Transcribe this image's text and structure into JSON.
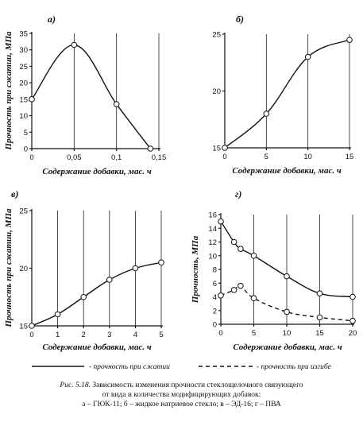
{
  "legend": {
    "compression": "- прочность при сжатии",
    "bending": "- прочность при изгибе"
  },
  "caption": {
    "prefix": "Рис. 5.18.",
    "line1": " Зависимость изменения прочности стеклощелочного связующего",
    "line2": "от вида и количества модифицирующих добавок:",
    "line3": "а – ГЮК-11; б – жидкое натриевое стекло; в – ЭД-16; г – ПВА"
  },
  "chart_data": [
    {
      "id": "a",
      "type": "line",
      "panel_letter": "а)",
      "xlabel": "Содержание добавки, мас. ч",
      "ylabel": "Прочность при сжатии, МПа",
      "x_ticks": [
        "0",
        "0,05",
        "0,1",
        "0,15"
      ],
      "x_tick_values": [
        0,
        0.05,
        0.1,
        0.15
      ],
      "y_ticks": [
        "0",
        "5",
        "10",
        "15",
        "20",
        "25",
        "30",
        "35"
      ],
      "y_tick_values": [
        0,
        5,
        10,
        15,
        20,
        25,
        30,
        35
      ],
      "xlim": [
        0,
        0.15
      ],
      "ylim": [
        0,
        35
      ],
      "grid": "vertical",
      "series": [
        {
          "style": "solid",
          "smooth": true,
          "x": [
            0,
            0.05,
            0.1,
            0.14
          ],
          "y": [
            15,
            31.5,
            13.5,
            0
          ]
        }
      ]
    },
    {
      "id": "b",
      "type": "line",
      "panel_letter": "б)",
      "xlabel": "Содержание добавки, мас. ч",
      "ylabel": "",
      "x_ticks": [
        "0",
        "5",
        "10",
        "15"
      ],
      "x_tick_values": [
        0,
        5,
        10,
        15
      ],
      "y_ticks": [
        "15",
        "20",
        "25"
      ],
      "y_tick_values": [
        15,
        20,
        25
      ],
      "xlim": [
        0,
        15
      ],
      "ylim": [
        15,
        25
      ],
      "grid": "vertical",
      "series": [
        {
          "style": "solid",
          "smooth": true,
          "x": [
            0,
            5,
            10,
            15
          ],
          "y": [
            15,
            18,
            23,
            24.5
          ]
        }
      ]
    },
    {
      "id": "c",
      "type": "line",
      "panel_letter": "в)",
      "xlabel": "Содержание добавки, мас. ч",
      "ylabel": "Прочность при сжатии, МПа",
      "x_ticks": [
        "0",
        "1",
        "2",
        "3",
        "4",
        "5"
      ],
      "x_tick_values": [
        0,
        1,
        2,
        3,
        4,
        5
      ],
      "y_ticks": [
        "15",
        "20",
        "25"
      ],
      "y_tick_values": [
        15,
        20,
        25
      ],
      "xlim": [
        0,
        5
      ],
      "ylim": [
        15,
        25
      ],
      "grid": "vertical",
      "series": [
        {
          "style": "solid",
          "smooth": true,
          "x": [
            0,
            1,
            2,
            3,
            4,
            5
          ],
          "y": [
            15,
            16,
            17.5,
            19,
            20,
            20.5
          ]
        }
      ]
    },
    {
      "id": "d",
      "type": "line",
      "panel_letter": "г)",
      "xlabel": "Содержание добавки, мас. ч",
      "ylabel": "Прочность, МПа",
      "x_ticks": [
        "0",
        "5",
        "10",
        "15",
        "20"
      ],
      "x_tick_values": [
        0,
        5,
        10,
        15,
        20
      ],
      "y_ticks": [
        "0",
        "2",
        "4",
        "6",
        "8",
        "10",
        "12",
        "14",
        "16"
      ],
      "y_tick_values": [
        0,
        2,
        4,
        6,
        8,
        10,
        12,
        14,
        16
      ],
      "xlim": [
        0,
        20
      ],
      "ylim": [
        0,
        16
      ],
      "grid": "vertical",
      "series": [
        {
          "name": "прочность при сжатии",
          "style": "solid",
          "smooth": true,
          "x": [
            0,
            2,
            3,
            5,
            10,
            15,
            20
          ],
          "y": [
            15,
            12,
            11,
            10,
            7,
            4.5,
            4
          ]
        },
        {
          "name": "прочность при изгибе",
          "style": "dashed",
          "smooth": true,
          "x": [
            0,
            2,
            3,
            5,
            10,
            15,
            20
          ],
          "y": [
            4.2,
            5,
            5.6,
            3.8,
            1.8,
            1,
            0.5
          ]
        }
      ]
    }
  ]
}
